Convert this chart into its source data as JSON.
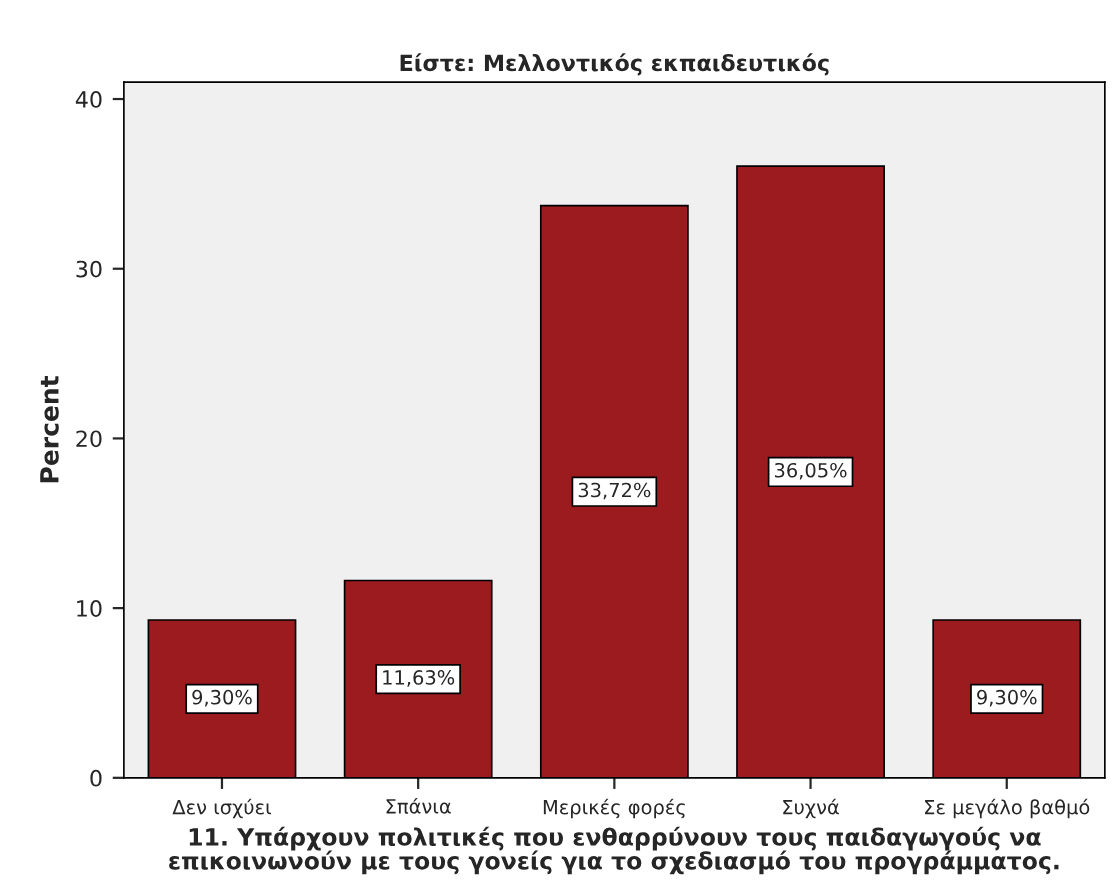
{
  "chart_data": {
    "type": "bar",
    "title": "Είστε: Μελλοντικός εκπαιδευτικός",
    "xlabel": "11. Υπάρχουν πολιτικές που ενθαρρύνουν τους παιδαγωγούς να\nεπικοινωνούν με τους γονείς για το σχεδιασμό του προγράμματος.",
    "ylabel": "Percent",
    "categories": [
      "Δεν ισχύει",
      "Σπάνια",
      "Μερικές φορές",
      "Συχνά",
      "Σε μεγάλο βαθμό"
    ],
    "values": [
      9.3,
      11.63,
      33.72,
      36.05,
      9.3
    ],
    "value_labels": [
      "9,30%",
      "11,63%",
      "33,72%",
      "36,05%",
      "9,30%"
    ],
    "color": "#9b1b1f",
    "ylim": [
      0,
      41
    ],
    "yticks": [
      0,
      10,
      20,
      30,
      40
    ],
    "grid": false,
    "legend": false
  }
}
